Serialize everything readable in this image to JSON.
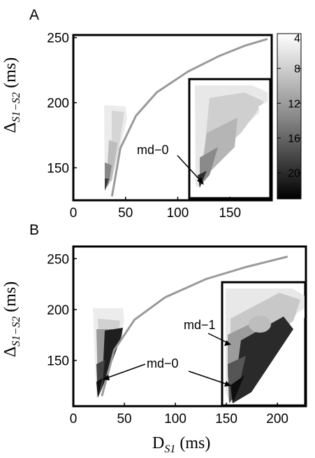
{
  "chart_data": [
    {
      "panel": "A",
      "type": "heatmap",
      "ylabel_base": "Δ",
      "ylabel_sub": "S1−S2",
      "ylabel_unit": " (ms)",
      "xlim": [
        0,
        190
      ],
      "ylim": [
        125,
        252
      ],
      "xticks": [
        0,
        50,
        100,
        150
      ],
      "yticks": [
        150,
        200,
        250
      ],
      "colorbar": {
        "min": 4,
        "max": 23,
        "ticks": [
          4,
          8,
          12,
          16,
          20
        ]
      },
      "annotations": [
        {
          "text": "md−0",
          "point": [
            36,
            132
          ]
        }
      ],
      "curve": [
        [
          37,
          128
        ],
        [
          45,
          165
        ],
        [
          60,
          190
        ],
        [
          80,
          208
        ],
        [
          110,
          224
        ],
        [
          140,
          236
        ],
        [
          165,
          244
        ],
        [
          186,
          249
        ]
      ],
      "inset": {
        "xrange": [
          112,
          190
        ],
        "yrange": [
          125,
          214
        ]
      }
    },
    {
      "panel": "B",
      "type": "heatmap",
      "ylabel_base": "Δ",
      "ylabel_sub": "S1−S2",
      "ylabel_unit": " (ms)",
      "xlabel_base": "D",
      "xlabel_sub": "S1",
      "xlabel_unit": " (ms)",
      "xlim": [
        0,
        228
      ],
      "ylim": [
        105,
        262
      ],
      "xticks": [
        0,
        50,
        100,
        150,
        200
      ],
      "yticks": [
        150,
        200,
        250
      ],
      "annotations": [
        {
          "text": "md−1",
          "point": [
            49,
            183
          ]
        },
        {
          "text": "md−0",
          "point": [
            26,
            128
          ]
        }
      ],
      "curve": [
        [
          28,
          115
        ],
        [
          40,
          160
        ],
        [
          60,
          190
        ],
        [
          90,
          212
        ],
        [
          130,
          230
        ],
        [
          170,
          242
        ],
        [
          210,
          252
        ]
      ],
      "inset": {
        "xrange": [
          146,
          228
        ],
        "yrange": [
          105,
          232
        ]
      }
    }
  ]
}
